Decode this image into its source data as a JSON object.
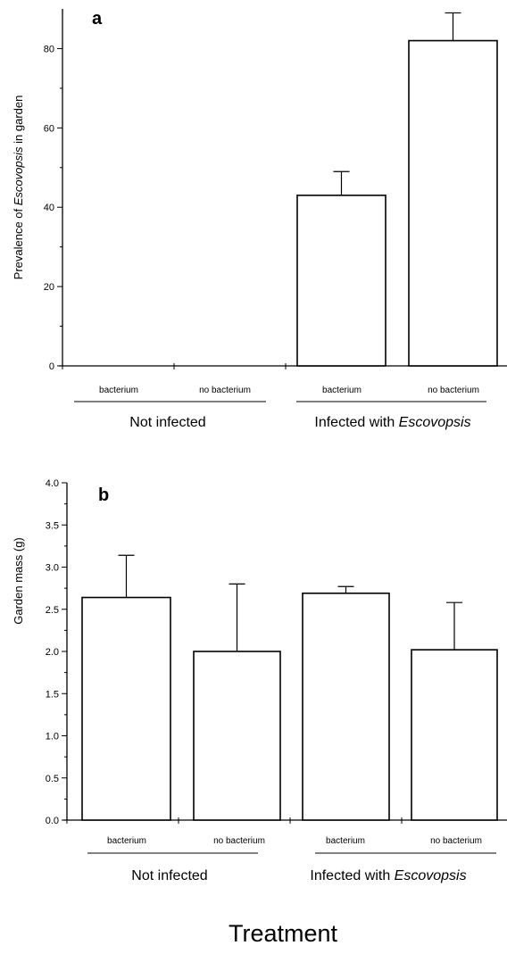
{
  "chart_data": [
    {
      "type": "bar",
      "panel_label": "a",
      "ylabel_parts": [
        {
          "text": "Prevalence of ",
          "italic": false
        },
        {
          "text": "Escovopsis",
          "italic": true
        },
        {
          "text": " in garden",
          "italic": false
        }
      ],
      "ylim": [
        0,
        90
      ],
      "yticks": [
        "0",
        "20",
        "40",
        "60",
        "80"
      ],
      "ytick_values": [
        0,
        20,
        40,
        60,
        80
      ],
      "categories": [
        "bacterium",
        "no bacterium",
        "bacterium",
        "no bacterium"
      ],
      "values": [
        0,
        0,
        43,
        82
      ],
      "errors": [
        0,
        0,
        6,
        7
      ],
      "groups": [
        {
          "name_parts": [
            {
              "text": "Not infected",
              "italic": false
            }
          ]
        },
        {
          "name_parts": [
            {
              "text": "Infected with ",
              "italic": false
            },
            {
              "text": "Escovopsis",
              "italic": true
            }
          ]
        }
      ]
    },
    {
      "type": "bar",
      "panel_label": "b",
      "ylabel_parts": [
        {
          "text": "Garden mass (g)",
          "italic": false
        }
      ],
      "ylim": [
        0,
        4.0
      ],
      "yticks": [
        "0.0",
        "0.5",
        "1.0",
        "1.5",
        "2.0",
        "2.5",
        "3.0",
        "3.5",
        "4.0"
      ],
      "ytick_values": [
        0,
        0.5,
        1.0,
        1.5,
        2.0,
        2.5,
        3.0,
        3.5,
        4.0
      ],
      "categories": [
        "bacterium",
        "no bacterium",
        "bacterium",
        "no bacterium"
      ],
      "values": [
        2.64,
        2.0,
        2.69,
        2.02
      ],
      "errors": [
        0.5,
        0.8,
        0.08,
        0.56
      ],
      "groups": [
        {
          "name_parts": [
            {
              "text": "Not infected",
              "italic": false
            }
          ]
        },
        {
          "name_parts": [
            {
              "text": "Infected with ",
              "italic": false
            },
            {
              "text": "Escovopsis",
              "italic": true
            }
          ]
        }
      ]
    }
  ],
  "xlabel": "Treatment"
}
